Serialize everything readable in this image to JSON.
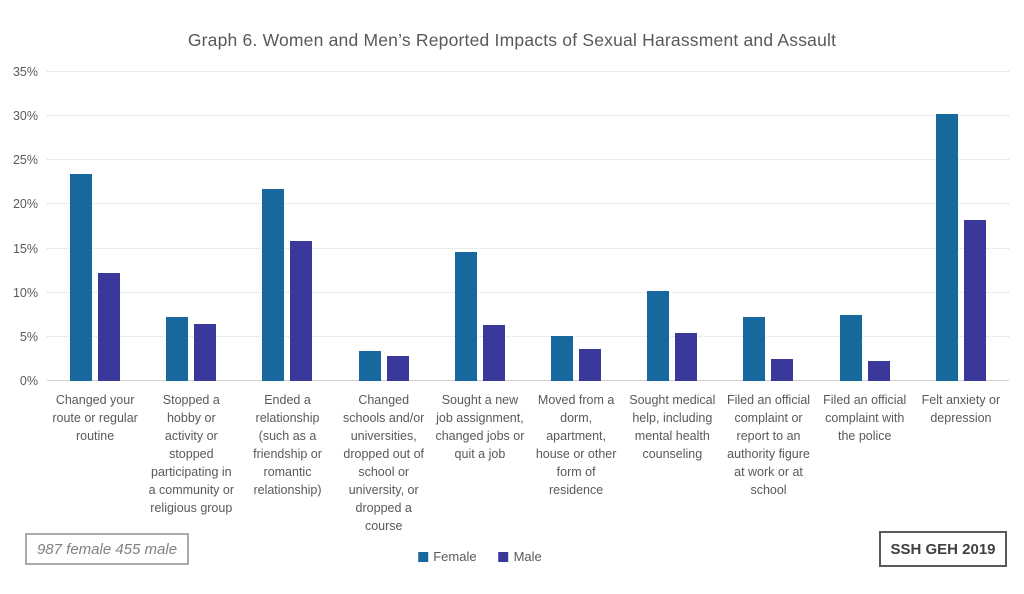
{
  "title": "Graph 6. Women and Men’s Reported Impacts of Sexual Harassment and Assault",
  "footer": {
    "sample_note": "987 female 455 male",
    "source_label": "SSH GEH 2019"
  },
  "colors": {
    "female": "#17689D",
    "male": "#3A399B",
    "text_gray": "#595959",
    "gridline": "#D9D9D9",
    "axis_line": "#D0CECE"
  },
  "chart_data": {
    "type": "bar",
    "title": "Graph 6. Women and Men’s Reported Impacts of Sexual Harassment and Assault",
    "categories": [
      "Changed your route or regular routine",
      "Stopped a hobby or activity or stopped participating in a community or religious group",
      "Ended a relationship (such as a friendship or romantic relationship)",
      "Changed schools and/or universities, dropped out of school or university, or dropped a course",
      "Sought a new job assignment, changed jobs or quit a job",
      "Moved from a dorm, apartment, house or other form of residence",
      "Sought medical help, including mental health counseling",
      "Filed an official complaint or report to an authority figure at work or at school",
      "Filed an official complaint with the police",
      "Felt anxiety or depression"
    ],
    "series": [
      {
        "name": "Female",
        "color": "#17689D",
        "values": [
          23.4,
          7.2,
          21.8,
          3.4,
          14.6,
          5.1,
          10.2,
          7.3,
          7.5,
          30.3
        ]
      },
      {
        "name": "Male",
        "color": "#3A399B",
        "values": [
          12.2,
          6.5,
          15.9,
          2.8,
          6.4,
          3.6,
          5.4,
          2.5,
          2.3,
          18.2
        ]
      }
    ],
    "xlabel": "",
    "ylabel": "",
    "ylim": [
      0,
      35
    ],
    "ytick_step": 5,
    "ytick_labels": [
      "0%",
      "5%",
      "10%",
      "15%",
      "20%",
      "25%",
      "30%",
      "35%"
    ],
    "grid": true,
    "legend_position": "bottom"
  }
}
